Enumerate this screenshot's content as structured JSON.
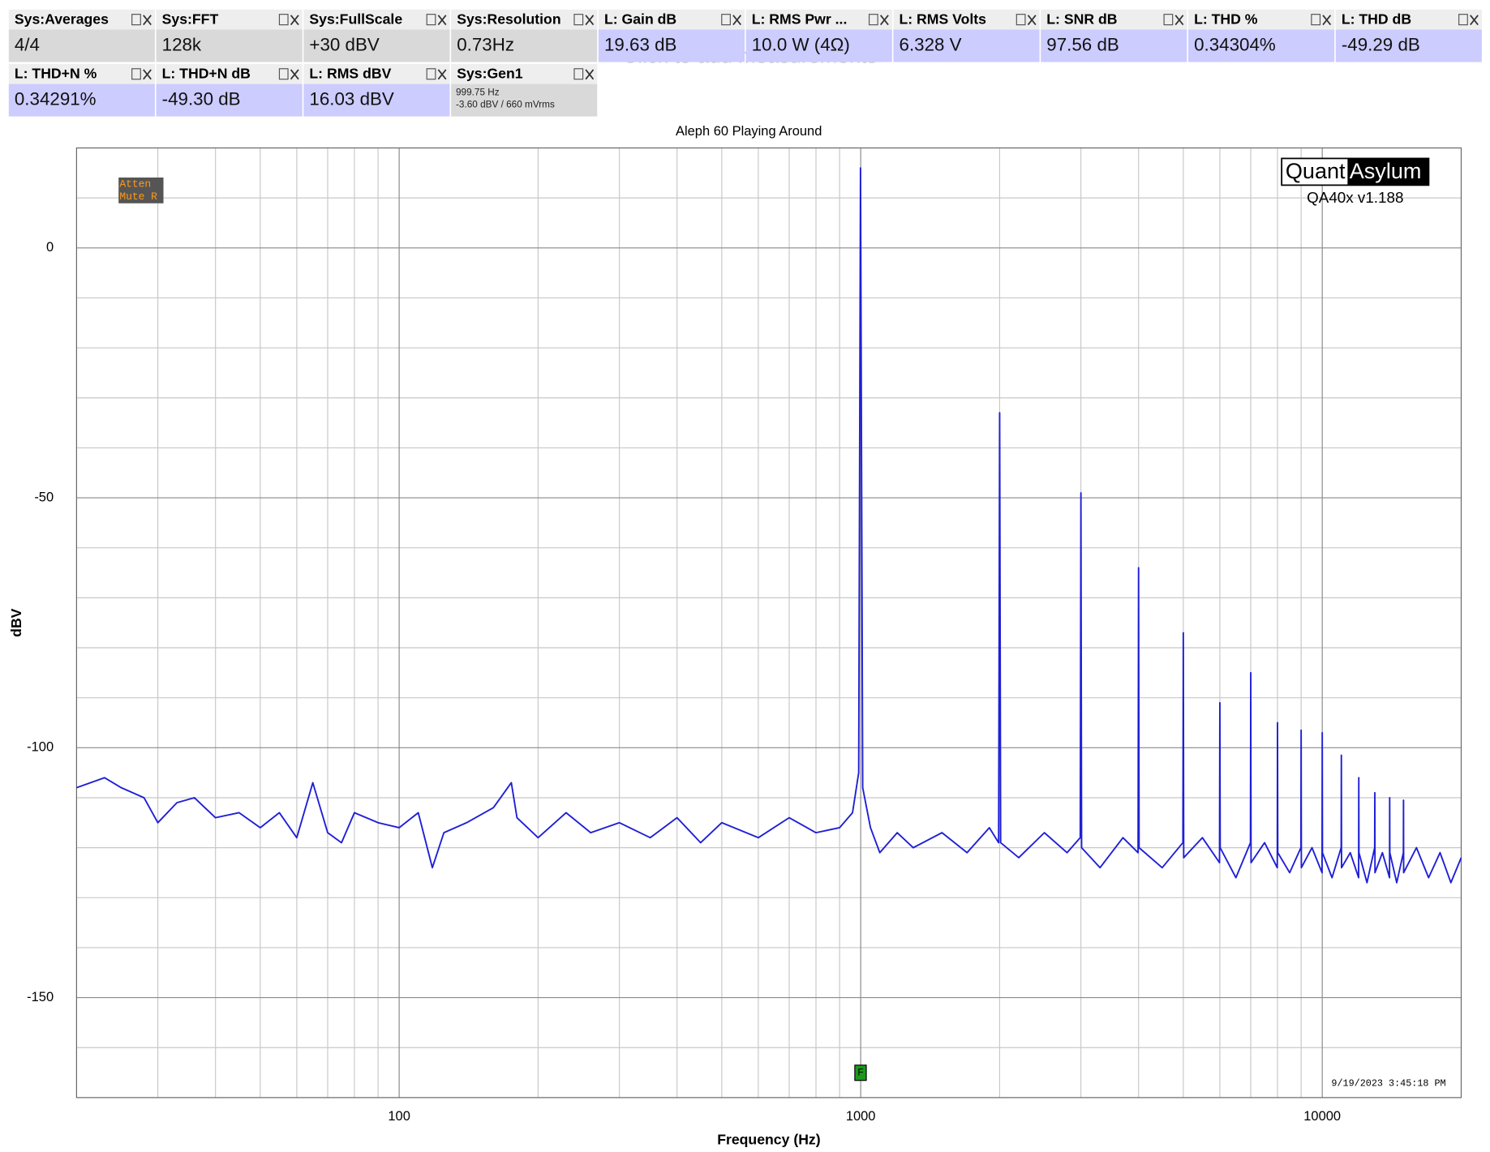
{
  "measurements": [
    {
      "label": "Sys:Averages",
      "value": "4/4",
      "color": "#d9d9d9"
    },
    {
      "label": "Sys:FFT",
      "value": "128k",
      "color": "#d9d9d9"
    },
    {
      "label": "Sys:FullScale",
      "value": "+30 dBV",
      "color": "#d9d9d9"
    },
    {
      "label": "Sys:Resolution",
      "value": "0.73Hz",
      "color": "#d9d9d9"
    },
    {
      "label": "L: Gain dB",
      "value": "19.63 dB",
      "color": "#ccccff"
    },
    {
      "label": "L: RMS Pwr ...",
      "value": "10.0 W (4Ω)",
      "color": "#ccccff"
    },
    {
      "label": "L: RMS Volts",
      "value": "6.328 V",
      "color": "#ccccff"
    },
    {
      "label": "L: SNR dB",
      "value": "97.56 dB",
      "color": "#ccccff"
    },
    {
      "label": "L: THD %",
      "value": "0.34304%",
      "color": "#ccccff"
    },
    {
      "label": "L: THD dB",
      "value": "-49.29 dB",
      "color": "#ccccff"
    },
    {
      "label": "L: THD+N %",
      "value": "0.34291%",
      "color": "#ccccff"
    },
    {
      "label": "L: THD+N dB",
      "value": "-49.30 dB",
      "color": "#ccccff"
    },
    {
      "label": "L: RMS dBV",
      "value": "16.03 dBV",
      "color": "#ccccff"
    },
    {
      "label": "Sys:Gen1",
      "lines": [
        "999.75 Hz",
        "-3.60 dBV  / 660 mVrms"
      ],
      "color": "#d9d9d9"
    }
  ],
  "hint": "Click to add measurements",
  "status_badge": [
    "Atten",
    "Mute R"
  ],
  "logo": {
    "left": "Quant",
    "right": "Asylum"
  },
  "version": "QA40x v1.188",
  "timestamp": "9/19/2023 3:45:18 PM",
  "marker": "F",
  "chart_data": {
    "type": "line",
    "title": "Aleph 60 Playing Around",
    "x_label": "Frequency (Hz)",
    "y_label": "dBV",
    "xscale": "log",
    "grid": true,
    "color": "#1f1fd6",
    "xlim": [
      20,
      20000
    ],
    "ylim": [
      -170,
      20
    ],
    "xticks": [
      100,
      1000,
      10000
    ],
    "x_minor_ticks": [
      30,
      40,
      50,
      60,
      70,
      80,
      90,
      200,
      300,
      400,
      500,
      600,
      700,
      800,
      900,
      2000,
      3000,
      4000,
      5000,
      6000,
      7000,
      8000,
      9000
    ],
    "yticks": [
      0,
      -50,
      -100,
      -150
    ],
    "y_minor_ticks": [
      10,
      -10,
      -20,
      -30,
      -40,
      -60,
      -70,
      -80,
      -90,
      -110,
      -120,
      -130,
      -140,
      -160
    ],
    "x": [
      20,
      23,
      25,
      28,
      30,
      33,
      36,
      40,
      45,
      50,
      55,
      60,
      65,
      70,
      75,
      80,
      90,
      100,
      110,
      118,
      125,
      140,
      160,
      175,
      180,
      200,
      230,
      260,
      300,
      350,
      400,
      450,
      500,
      600,
      700,
      800,
      900,
      960,
      990,
      999,
      1010,
      1050,
      1100,
      1200,
      1300,
      1500,
      1700,
      1900,
      1990,
      2000,
      2010,
      2200,
      2500,
      2800,
      2990,
      3000,
      3010,
      3300,
      3700,
      3990,
      4000,
      4010,
      4500,
      4990,
      5000,
      5010,
      5500,
      5990,
      6000,
      6010,
      6500,
      6990,
      7000,
      7010,
      7500,
      7990,
      8000,
      8010,
      8500,
      8990,
      9000,
      9010,
      9500,
      9990,
      10000,
      10010,
      10500,
      10990,
      11000,
      11010,
      11500,
      11990,
      12000,
      12010,
      12500,
      12990,
      13000,
      13010,
      13500,
      13990,
      14000,
      14010,
      14500,
      14990,
      15000,
      15010,
      16000,
      17000,
      18000,
      19000,
      20000
    ],
    "values": [
      -108,
      -106,
      -108,
      -110,
      -115,
      -111,
      -110,
      -114,
      -113,
      -116,
      -113,
      -118,
      -107,
      -117,
      -119,
      -113,
      -115,
      -116,
      -113,
      -124,
      -117,
      -115,
      -112,
      -107,
      -114,
      -118,
      -113,
      -117,
      -115,
      -118,
      -114,
      -119,
      -115,
      -118,
      -114,
      -117,
      -116,
      -113,
      -105,
      16,
      -108,
      -116,
      -121,
      -117,
      -120,
      -117,
      -121,
      -116,
      -119,
      -33,
      -119,
      -122,
      -117,
      -121,
      -118,
      -49,
      -120,
      -124,
      -118,
      -121,
      -64,
      -120,
      -124,
      -119,
      -77,
      -122,
      -118,
      -123,
      -91,
      -120,
      -126,
      -119,
      -85,
      -123,
      -119,
      -124,
      -95,
      -121,
      -125,
      -120,
      -96.5,
      -124,
      -120,
      -125,
      -97,
      -121,
      -126,
      -120,
      -101.5,
      -124,
      -121,
      -126,
      -106,
      -121,
      -127,
      -120,
      -109,
      -125,
      -121,
      -126,
      -110,
      -121,
      -127,
      -121,
      -110.5,
      -125,
      -120,
      -126,
      -121,
      -127,
      -122
    ]
  }
}
